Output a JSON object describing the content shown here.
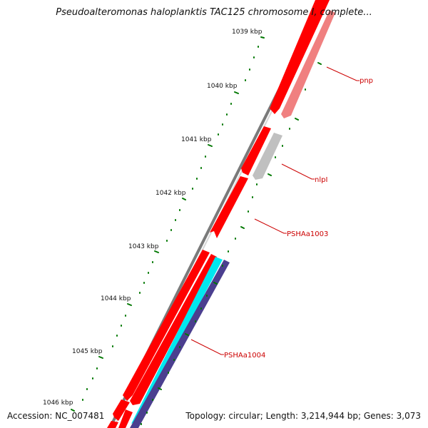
{
  "title": "Pseudoalteromonas haloplanktis TAC125 chromosome I, complete...",
  "accession": "Accession: NC_007481",
  "summary": "Topology: circular; Length: 3,214,944 bp; Genes: 3,073",
  "colors": {
    "backbone": "#808080",
    "cds_red": "#ff0000",
    "cds_pink": "#f08080",
    "cds_gray": "#c0c0c0",
    "cyan": "#00ffff",
    "indigo": "#4b3f8f",
    "tick_green": "#007700",
    "label_red": "#cc0000"
  },
  "kbp_labels": [
    "1039 kbp",
    "1040 kbp",
    "1041 kbp",
    "1042 kbp",
    "1043 kbp",
    "1044 kbp",
    "1045 kbp",
    "1046 kbp"
  ],
  "gene_labels": [
    "pnp",
    "nlpI",
    "PSHAa1003",
    "PSHAa1004"
  ]
}
